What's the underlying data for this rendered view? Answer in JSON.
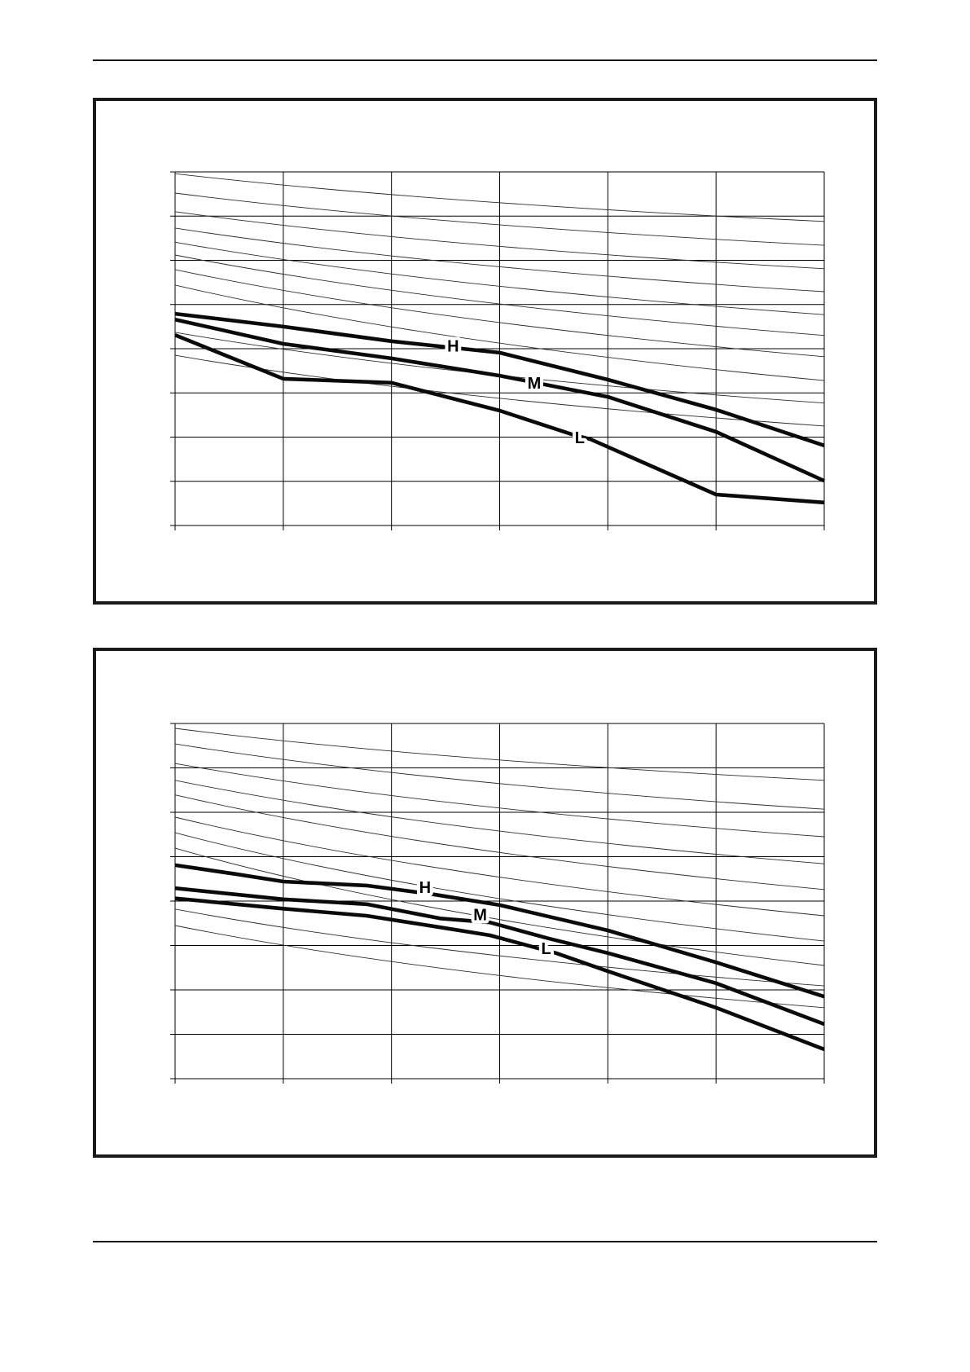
{
  "page": {
    "ink_color": "#1a1a1a",
    "visible_text": [
      "H",
      "M",
      "L"
    ],
    "rules": {
      "top_rule": true,
      "bottom_rule": true
    }
  },
  "chart_data": [
    {
      "type": "line",
      "position": "top-panel",
      "title": "",
      "axis_labels": {
        "x": "",
        "y": ""
      },
      "tick_labels_visible": false,
      "grid": {
        "cols": 6,
        "rows": 8,
        "on": true
      },
      "x_range": [
        0,
        6
      ],
      "y_range": [
        0,
        8
      ],
      "fan_curves": [
        [
          7.96,
          6.88
        ],
        [
          7.52,
          6.34
        ],
        [
          7.1,
          5.81
        ],
        [
          6.73,
          5.29
        ],
        [
          6.41,
          4.77
        ],
        [
          6.12,
          4.3
        ],
        [
          5.79,
          3.82
        ],
        [
          5.44,
          3.28
        ],
        [
          4.37,
          2.77
        ],
        [
          3.85,
          2.25
        ]
      ],
      "series": [
        {
          "name": "H",
          "label": "H",
          "label_at": [
            2.57,
            4.05
          ],
          "points": [
            [
              0,
              4.79
            ],
            [
              1,
              4.5
            ],
            [
              2,
              4.17
            ],
            [
              3,
              3.91
            ],
            [
              4,
              3.3
            ],
            [
              5,
              2.62
            ],
            [
              6,
              1.81
            ]
          ]
        },
        {
          "name": "M",
          "label": "M",
          "label_at": [
            3.32,
            3.21
          ],
          "points": [
            [
              0,
              4.66
            ],
            [
              1,
              4.11
            ],
            [
              2,
              3.78
            ],
            [
              3,
              3.39
            ],
            [
              4,
              2.91
            ],
            [
              5,
              2.12
            ],
            [
              6,
              1.01
            ]
          ]
        },
        {
          "name": "L",
          "label": "L",
          "label_at": [
            3.74,
            1.97
          ],
          "points": [
            [
              0,
              4.31
            ],
            [
              1,
              3.32
            ],
            [
              2,
              3.23
            ],
            [
              3,
              2.6
            ],
            [
              3.67,
              2.06
            ],
            [
              3.84,
              1.95
            ],
            [
              5,
              0.7
            ],
            [
              6,
              0.52
            ]
          ]
        }
      ]
    },
    {
      "type": "line",
      "position": "bottom-panel",
      "title": "",
      "axis_labels": {
        "x": "",
        "y": ""
      },
      "tick_labels_visible": false,
      "grid": {
        "cols": 6,
        "rows": 8,
        "on": true
      },
      "x_range": [
        0,
        6
      ],
      "y_range": [
        0,
        8
      ],
      "fan_curves": [
        [
          7.89,
          6.72
        ],
        [
          7.54,
          6.07
        ],
        [
          7.1,
          5.45
        ],
        [
          6.72,
          4.84
        ],
        [
          6.39,
          4.26
        ],
        [
          5.89,
          3.67
        ],
        [
          5.54,
          3.1
        ],
        [
          5.19,
          2.55
        ],
        [
          3.82,
          2.09
        ],
        [
          3.45,
          1.6
        ]
      ],
      "series": [
        {
          "name": "H",
          "label": "H",
          "label_at": [
            2.31,
            4.29
          ],
          "points": [
            [
              0,
              4.81
            ],
            [
              0.56,
              4.61
            ],
            [
              1,
              4.44
            ],
            [
              1.77,
              4.35
            ],
            [
              2.39,
              4.15
            ],
            [
              3,
              3.91
            ],
            [
              4,
              3.34
            ],
            [
              5,
              2.62
            ],
            [
              6,
              1.85
            ]
          ]
        },
        {
          "name": "M",
          "label": "M",
          "label_at": [
            2.82,
            3.68
          ],
          "points": [
            [
              0,
              4.29
            ],
            [
              1,
              4.04
            ],
            [
              1.77,
              3.93
            ],
            [
              2.45,
              3.61
            ],
            [
              2.91,
              3.52
            ],
            [
              3.45,
              3.16
            ],
            [
              4,
              2.83
            ],
            [
              5,
              2.15
            ],
            [
              6,
              1.23
            ]
          ]
        },
        {
          "name": "L",
          "label": "L",
          "label_at": [
            3.43,
            2.92
          ],
          "points": [
            [
              0,
              4.06
            ],
            [
              1,
              3.83
            ],
            [
              1.77,
              3.67
            ],
            [
              2.45,
              3.41
            ],
            [
              2.91,
              3.23
            ],
            [
              3.52,
              2.83
            ],
            [
              4,
              2.42
            ],
            [
              5,
              1.6
            ],
            [
              6,
              0.66
            ]
          ]
        }
      ]
    }
  ]
}
